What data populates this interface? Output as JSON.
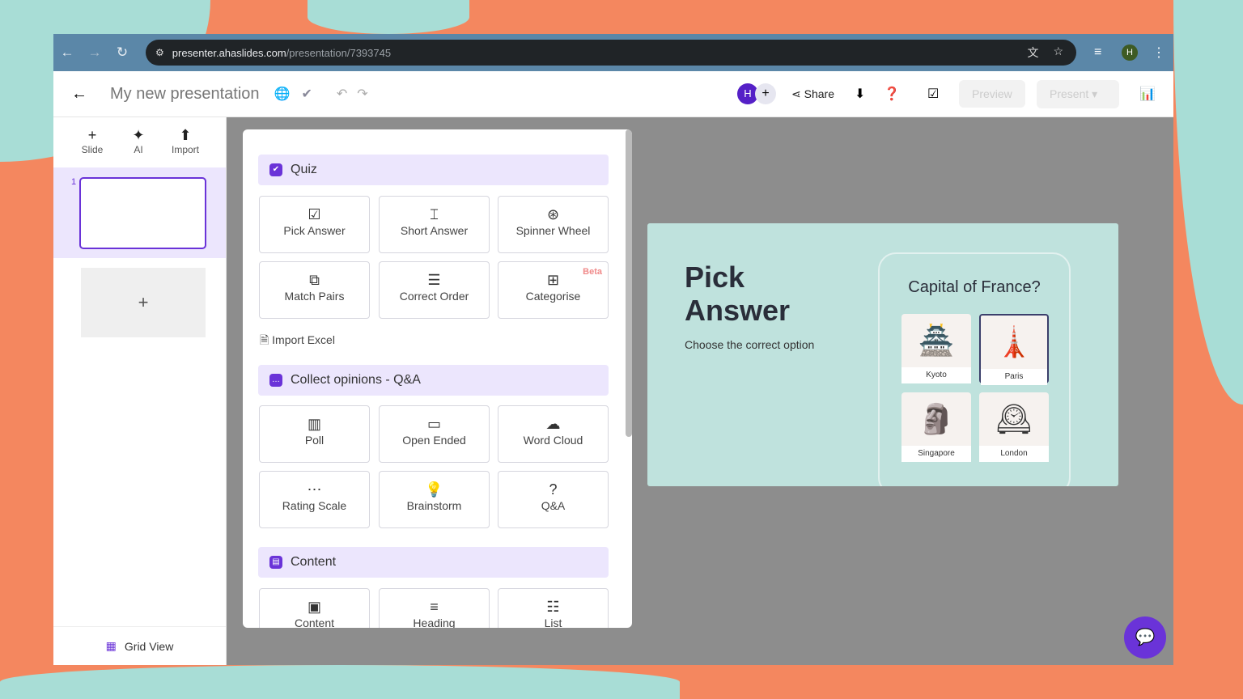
{
  "browser": {
    "host": "presenter.ahaslides.com",
    "path": "/presentation/7393745",
    "profile": "H"
  },
  "header": {
    "title": "My new presentation",
    "collab_initial": "H",
    "share": "Share",
    "preview": "Preview",
    "present": "Present"
  },
  "sidebar": {
    "tools": [
      {
        "label": "Slide",
        "icon": "+"
      },
      {
        "label": "AI",
        "icon": "✦"
      },
      {
        "label": "Import",
        "icon": "⬆"
      }
    ],
    "slide_number": "1",
    "add": "+",
    "grid_view": "Grid View"
  },
  "panel": {
    "quiz": {
      "title": "Quiz",
      "items": [
        {
          "label": "Pick Answer",
          "icon": "☑"
        },
        {
          "label": "Short Answer",
          "icon": "⌶"
        },
        {
          "label": "Spinner Wheel",
          "icon": "⊛"
        },
        {
          "label": "Match Pairs",
          "icon": "⧉"
        },
        {
          "label": "Correct Order",
          "icon": "☰"
        },
        {
          "label": "Categorise",
          "icon": "⊞",
          "badge": "Beta"
        }
      ]
    },
    "import_excel": "Import Excel",
    "opinions": {
      "title": "Collect opinions - Q&A",
      "items": [
        {
          "label": "Poll",
          "icon": "▥"
        },
        {
          "label": "Open Ended",
          "icon": "▭"
        },
        {
          "label": "Word Cloud",
          "icon": "☁"
        },
        {
          "label": "Rating Scale",
          "icon": "⋯"
        },
        {
          "label": "Brainstorm",
          "icon": "💡"
        },
        {
          "label": "Q&A",
          "icon": "?"
        }
      ]
    },
    "content": {
      "title": "Content",
      "items": [
        {
          "label": "Content",
          "icon": "▣"
        },
        {
          "label": "Heading",
          "icon": "≡"
        },
        {
          "label": "List",
          "icon": "☷"
        }
      ]
    }
  },
  "preview": {
    "title_line1": "Pick",
    "title_line2": "Answer",
    "subtitle": "Choose the correct option",
    "question": "Capital of France?",
    "options": [
      {
        "label": "Kyoto",
        "icon": "🏯"
      },
      {
        "label": "Paris",
        "icon": "🗼",
        "selected": true
      },
      {
        "label": "Singapore",
        "icon": "🗿"
      },
      {
        "label": "London",
        "icon": "🕰"
      }
    ]
  },
  "colors": {
    "accent": "#6a33d8",
    "section_bg": "#ece6fd",
    "bg_coral": "#f4875f",
    "bg_teal": "#a8ddd6"
  }
}
